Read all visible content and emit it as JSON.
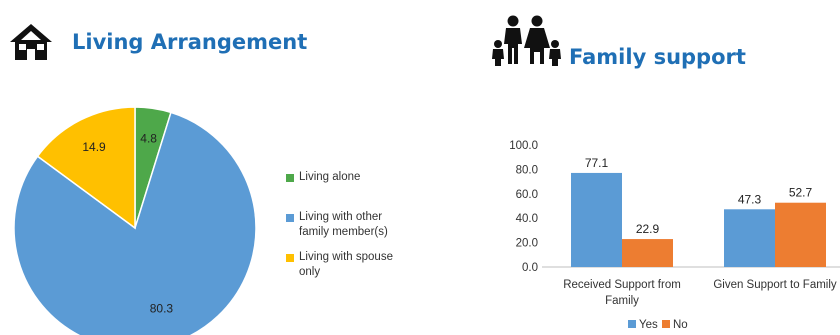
{
  "left_panel": {
    "title": "Living Arrangement",
    "icon": "house-icon"
  },
  "right_panel": {
    "title": "Family support",
    "icon": "family-icon"
  },
  "chart_data": [
    {
      "type": "pie",
      "title": "Living Arrangement",
      "slices": [
        {
          "label": "Living alone",
          "value": 4.8,
          "color": "#4ea84a"
        },
        {
          "label": "Living with other family member(s)",
          "value": 80.3,
          "color": "#5b9bd5"
        },
        {
          "label": "Living with spouse only",
          "value": 14.9,
          "color": "#ffc000"
        }
      ],
      "legend_lines": [
        [
          "Living alone"
        ],
        [
          "Living with other",
          "family member(s)"
        ],
        [
          "Living with spouse",
          "only"
        ]
      ],
      "legend_position": "right"
    },
    {
      "type": "bar",
      "title": "Family support",
      "categories": [
        "Received Support from Family",
        "Given Support to Family"
      ],
      "category_lines": [
        [
          "Received Support from",
          "Family"
        ],
        [
          "Given Support to Family"
        ]
      ],
      "series": [
        {
          "name": "Yes",
          "values": [
            77.1,
            47.3
          ],
          "color": "#5b9bd5"
        },
        {
          "name": "No",
          "values": [
            22.9,
            52.7
          ],
          "color": "#ed7d31"
        }
      ],
      "yticks": [
        "0.0",
        "20.0",
        "40.0",
        "60.0",
        "80.0",
        "100.0"
      ],
      "ylim": [
        0,
        100
      ],
      "grid": false,
      "legend_position": "bottom"
    }
  ]
}
